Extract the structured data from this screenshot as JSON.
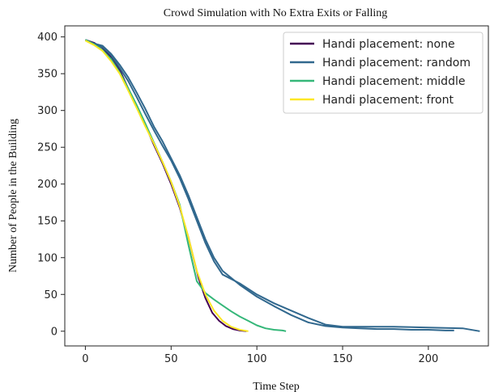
{
  "chart_data": {
    "type": "line",
    "title": "Crowd Simulation with No Extra Exits or Falling",
    "xlabel": "Time Step",
    "ylabel": "Number of People in the Building",
    "xlim": [
      -12,
      235
    ],
    "ylim": [
      -20,
      415
    ],
    "xticks": [
      0,
      50,
      100,
      150,
      200
    ],
    "yticks": [
      0,
      50,
      100,
      150,
      200,
      250,
      300,
      350,
      400
    ],
    "grid": false,
    "legend_position": "top-right",
    "legend": [
      "Handi placement: none",
      "Handi placement: random",
      "Handi placement: middle",
      "Handi placement: front"
    ],
    "series": [
      {
        "name": "Handi placement: none",
        "color": "#440154",
        "x": [
          0,
          5,
          10,
          15,
          20,
          25,
          30,
          35,
          40,
          45,
          50,
          55,
          60,
          63,
          66,
          70,
          74,
          78,
          82,
          86,
          90,
          94
        ],
        "y": [
          396,
          392,
          385,
          372,
          355,
          330,
          305,
          280,
          253,
          228,
          200,
          168,
          128,
          100,
          72,
          45,
          25,
          14,
          7,
          3,
          1,
          0
        ]
      },
      {
        "name": "Handi placement: random",
        "color": "#31688e",
        "x": [
          0,
          5,
          10,
          15,
          20,
          25,
          30,
          35,
          40,
          45,
          50,
          55,
          60,
          65,
          70,
          75,
          80,
          90,
          100,
          110,
          120,
          130,
          140,
          150,
          160,
          170,
          180,
          190,
          200,
          210,
          215
        ],
        "y": [
          396,
          391,
          388,
          377,
          362,
          345,
          324,
          302,
          278,
          258,
          235,
          212,
          185,
          155,
          125,
          100,
          82,
          63,
          47,
          34,
          22,
          12,
          7,
          5,
          4,
          3,
          3,
          2,
          2,
          1,
          1
        ]
      },
      {
        "name": "Handi placement: random",
        "color": "#31688e",
        "x": [
          0,
          5,
          10,
          15,
          20,
          25,
          30,
          35,
          40,
          45,
          50,
          55,
          60,
          65,
          70,
          75,
          80,
          90,
          100,
          110,
          120,
          130,
          140,
          150,
          160,
          180,
          200,
          220,
          230
        ],
        "y": [
          396,
          390,
          386,
          375,
          358,
          340,
          318,
          295,
          273,
          252,
          232,
          208,
          180,
          150,
          120,
          95,
          77,
          65,
          50,
          38,
          28,
          18,
          9,
          6,
          6,
          6,
          5,
          4,
          0
        ]
      },
      {
        "name": "Handi placement: middle",
        "color": "#35b779",
        "x": [
          0,
          5,
          10,
          15,
          20,
          25,
          30,
          35,
          40,
          45,
          50,
          55,
          60,
          65,
          70,
          75,
          80,
          85,
          90,
          95,
          100,
          105,
          110,
          115,
          117
        ],
        "y": [
          396,
          390,
          382,
          370,
          352,
          330,
          307,
          282,
          256,
          230,
          203,
          172,
          118,
          68,
          52,
          43,
          35,
          27,
          20,
          14,
          8,
          4,
          2,
          1,
          0
        ]
      },
      {
        "name": "Handi placement: front",
        "color": "#fde725",
        "x": [
          0,
          5,
          10,
          15,
          20,
          25,
          30,
          35,
          40,
          45,
          50,
          55,
          60,
          65,
          70,
          75,
          80,
          85,
          90,
          95
        ],
        "y": [
          395,
          389,
          381,
          367,
          350,
          327,
          303,
          278,
          255,
          230,
          203,
          170,
          128,
          82,
          50,
          28,
          14,
          6,
          2,
          0
        ]
      }
    ]
  }
}
